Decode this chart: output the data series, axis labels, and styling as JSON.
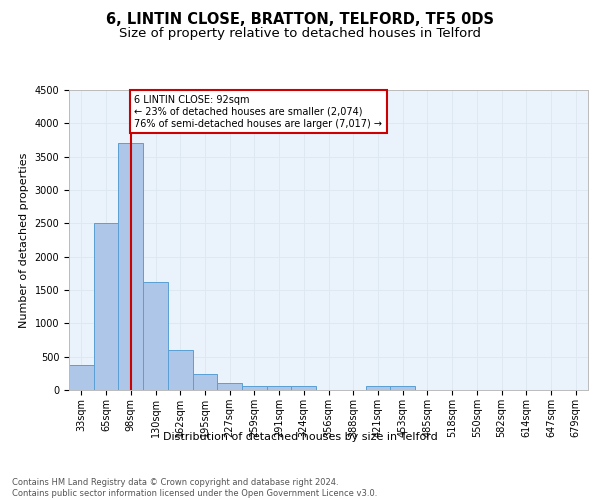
{
  "title": "6, LINTIN CLOSE, BRATTON, TELFORD, TF5 0DS",
  "subtitle": "Size of property relative to detached houses in Telford",
  "xlabel": "Distribution of detached houses by size in Telford",
  "ylabel": "Number of detached properties",
  "categories": [
    "33sqm",
    "65sqm",
    "98sqm",
    "130sqm",
    "162sqm",
    "195sqm",
    "227sqm",
    "259sqm",
    "291sqm",
    "324sqm",
    "356sqm",
    "388sqm",
    "421sqm",
    "453sqm",
    "485sqm",
    "518sqm",
    "550sqm",
    "582sqm",
    "614sqm",
    "647sqm",
    "679sqm"
  ],
  "values": [
    375,
    2500,
    3700,
    1625,
    600,
    240,
    105,
    65,
    55,
    55,
    0,
    0,
    60,
    55,
    0,
    0,
    0,
    0,
    0,
    0,
    0
  ],
  "bar_color": "#aec6e8",
  "bar_edge_color": "#5a9fd4",
  "grid_color": "#dde8f0",
  "bg_color": "#eaf3fb",
  "vline_x": 2,
  "vline_color": "#cc0000",
  "annotation_text": "6 LINTIN CLOSE: 92sqm\n← 23% of detached houses are smaller (2,074)\n76% of semi-detached houses are larger (7,017) →",
  "annotation_box_color": "#ffffff",
  "annotation_box_edge_color": "#cc0000",
  "ylim": [
    0,
    4500
  ],
  "yticks": [
    0,
    500,
    1000,
    1500,
    2000,
    2500,
    3000,
    3500,
    4000,
    4500
  ],
  "footer": "Contains HM Land Registry data © Crown copyright and database right 2024.\nContains public sector information licensed under the Open Government Licence v3.0.",
  "title_fontsize": 10.5,
  "subtitle_fontsize": 9.5,
  "label_fontsize": 8,
  "tick_fontsize": 7,
  "footer_fontsize": 6,
  "annotation_fontsize": 7
}
